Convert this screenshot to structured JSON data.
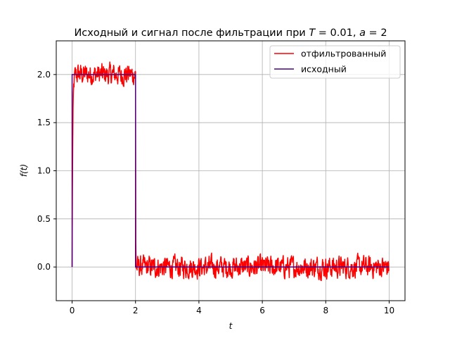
{
  "chart_data": {
    "type": "line",
    "title": "Исходный и сигнал после фильтрации при T = 0.01, a = 2",
    "xlabel": "t",
    "ylabel": "f(t)",
    "xlim": [
      -0.5,
      10.5
    ],
    "ylim": [
      -0.35,
      2.35
    ],
    "x_ticks": [
      0,
      2,
      4,
      6,
      8,
      10
    ],
    "y_ticks": [
      0.0,
      0.5,
      1.0,
      1.5,
      2.0
    ],
    "x_tick_labels": [
      "0",
      "2",
      "4",
      "6",
      "8",
      "10"
    ],
    "y_tick_labels": [
      "0.0",
      "0.5",
      "1.0",
      "1.5",
      "2.0"
    ],
    "grid": true,
    "legend_position": "top-right",
    "series": [
      {
        "name": "отфильтрованный",
        "color": "#ff0000",
        "description_values": {
          "segments": [
            {
              "x_start": 0,
              "x_end": 2,
              "mean": 2.0,
              "noise_amplitude": 0.2,
              "rise_from": 0.0
            },
            {
              "x_start": 2,
              "x_end": 10,
              "mean": 0.0,
              "noise_amplitude": 0.2
            }
          ]
        }
      },
      {
        "name": "исходный",
        "color": "#4b0082",
        "points": [
          [
            0,
            0
          ],
          [
            0,
            2
          ],
          [
            2,
            2
          ],
          [
            2,
            0
          ],
          [
            10,
            0
          ]
        ]
      }
    ]
  }
}
